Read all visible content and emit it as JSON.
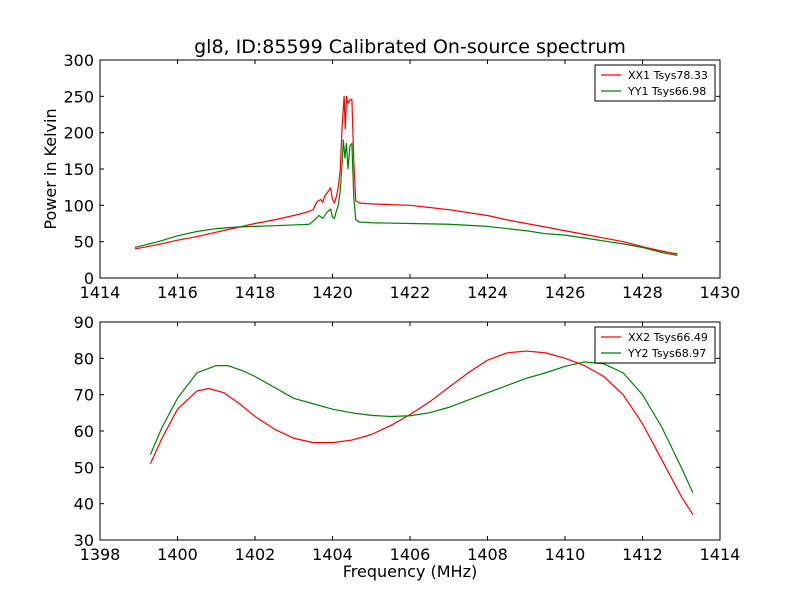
{
  "figure": {
    "title": "gl8, ID:85599 Calibrated On-source spectrum"
  },
  "chart_data": [
    {
      "type": "line",
      "title": "gl8, ID:85599 Calibrated On-source spectrum",
      "xlabel": "",
      "ylabel": "Power in Kelvin",
      "xlim": [
        1414,
        1430
      ],
      "ylim": [
        0,
        300
      ],
      "xticks": [
        1414,
        1416,
        1418,
        1420,
        1422,
        1424,
        1426,
        1428,
        1430
      ],
      "yticks": [
        0,
        50,
        100,
        150,
        200,
        250,
        300
      ],
      "grid": false,
      "legend": "top-right",
      "series": [
        {
          "name": "XX1 Tsys78.33",
          "color": "#ff0000",
          "points": [
            [
              1414.9,
              40
            ],
            [
              1415.5,
              46
            ],
            [
              1416,
              52
            ],
            [
              1416.5,
              57
            ],
            [
              1417,
              63
            ],
            [
              1417.5,
              69
            ],
            [
              1418,
              75
            ],
            [
              1418.5,
              80
            ],
            [
              1419,
              86
            ],
            [
              1419.3,
              90
            ],
            [
              1419.5,
              94
            ],
            [
              1419.6,
              105
            ],
            [
              1419.7,
              108
            ],
            [
              1419.75,
              104
            ],
            [
              1419.8,
              113
            ],
            [
              1419.9,
              120
            ],
            [
              1419.95,
              124
            ],
            [
              1420.0,
              108
            ],
            [
              1420.05,
              103
            ],
            [
              1420.1,
              112
            ],
            [
              1420.15,
              125
            ],
            [
              1420.2,
              150
            ],
            [
              1420.25,
              210
            ],
            [
              1420.3,
              250
            ],
            [
              1420.33,
              205
            ],
            [
              1420.36,
              250
            ],
            [
              1420.4,
              240
            ],
            [
              1420.45,
              245
            ],
            [
              1420.5,
              246
            ],
            [
              1420.55,
              160
            ],
            [
              1420.6,
              106
            ],
            [
              1420.7,
              103
            ],
            [
              1421,
              102
            ],
            [
              1421.5,
              101
            ],
            [
              1422,
              100
            ],
            [
              1422.5,
              97
            ],
            [
              1423,
              94
            ],
            [
              1423.5,
              90
            ],
            [
              1424,
              86
            ],
            [
              1424.5,
              80
            ],
            [
              1425,
              75
            ],
            [
              1425.5,
              70
            ],
            [
              1426,
              65
            ],
            [
              1426.5,
              60
            ],
            [
              1427,
              55
            ],
            [
              1427.5,
              50
            ],
            [
              1428,
              43
            ],
            [
              1428.5,
              37
            ],
            [
              1428.9,
              33
            ]
          ]
        },
        {
          "name": "YY1 Tsys66.98",
          "color": "#008000",
          "points": [
            [
              1414.9,
              42
            ],
            [
              1415.5,
              50
            ],
            [
              1416,
              58
            ],
            [
              1416.5,
              64
            ],
            [
              1417,
              68
            ],
            [
              1417.5,
              70
            ],
            [
              1418,
              71
            ],
            [
              1418.5,
              72
            ],
            [
              1419,
              73
            ],
            [
              1419.4,
              74
            ],
            [
              1419.5,
              78
            ],
            [
              1419.65,
              86
            ],
            [
              1419.75,
              82
            ],
            [
              1419.85,
              90
            ],
            [
              1419.95,
              95
            ],
            [
              1420.0,
              84
            ],
            [
              1420.05,
              82
            ],
            [
              1420.1,
              92
            ],
            [
              1420.15,
              100
            ],
            [
              1420.2,
              120
            ],
            [
              1420.25,
              160
            ],
            [
              1420.28,
              190
            ],
            [
              1420.32,
              165
            ],
            [
              1420.36,
              185
            ],
            [
              1420.4,
              150
            ],
            [
              1420.45,
              182
            ],
            [
              1420.5,
              185
            ],
            [
              1420.55,
              110
            ],
            [
              1420.6,
              80
            ],
            [
              1420.7,
              77
            ],
            [
              1421,
              76
            ],
            [
              1422,
              75
            ],
            [
              1423,
              74
            ],
            [
              1424,
              71
            ],
            [
              1424.5,
              68
            ],
            [
              1425,
              65
            ],
            [
              1425.5,
              61
            ],
            [
              1426,
              59
            ],
            [
              1426.5,
              55
            ],
            [
              1427,
              51
            ],
            [
              1427.5,
              47
            ],
            [
              1428,
              42
            ],
            [
              1428.5,
              35
            ],
            [
              1428.9,
              31
            ]
          ]
        }
      ]
    },
    {
      "type": "line",
      "title": "",
      "xlabel": "Frequency (MHz)",
      "ylabel": "",
      "xlim": [
        1398,
        1414
      ],
      "ylim": [
        30,
        90
      ],
      "xticks": [
        1398,
        1400,
        1402,
        1404,
        1406,
        1408,
        1410,
        1412,
        1414
      ],
      "yticks": [
        30,
        40,
        50,
        60,
        70,
        80,
        90
      ],
      "grid": false,
      "legend": "top-right",
      "series": [
        {
          "name": "XX2 Tsys66.49",
          "color": "#ff0000",
          "points": [
            [
              1399.3,
              51
            ],
            [
              1399.6,
              58
            ],
            [
              1400,
              66
            ],
            [
              1400.5,
              71
            ],
            [
              1400.8,
              71.7
            ],
            [
              1401.2,
              70.5
            ],
            [
              1401.6,
              67.5
            ],
            [
              1402,
              64
            ],
            [
              1402.5,
              60.5
            ],
            [
              1403,
              58
            ],
            [
              1403.5,
              56.8
            ],
            [
              1404,
              56.8
            ],
            [
              1404.5,
              57.5
            ],
            [
              1405,
              59
            ],
            [
              1405.5,
              61.5
            ],
            [
              1406,
              64.5
            ],
            [
              1406.5,
              68
            ],
            [
              1407,
              72
            ],
            [
              1407.5,
              76
            ],
            [
              1408,
              79.5
            ],
            [
              1408.5,
              81.5
            ],
            [
              1409,
              82
            ],
            [
              1409.5,
              81.5
            ],
            [
              1410,
              80
            ],
            [
              1410.5,
              78
            ],
            [
              1411,
              75
            ],
            [
              1411.5,
              70
            ],
            [
              1412,
              62
            ],
            [
              1412.5,
              52
            ],
            [
              1413,
              42
            ],
            [
              1413.3,
              37
            ]
          ]
        },
        {
          "name": "YY2 Tsys68.97",
          "color": "#008000",
          "points": [
            [
              1399.3,
              53.5
            ],
            [
              1399.6,
              61
            ],
            [
              1400,
              69
            ],
            [
              1400.5,
              76
            ],
            [
              1401,
              78
            ],
            [
              1401.3,
              78
            ],
            [
              1401.7,
              76.5
            ],
            [
              1402,
              75
            ],
            [
              1402.5,
              72
            ],
            [
              1403,
              69
            ],
            [
              1403.5,
              67.5
            ],
            [
              1404,
              66
            ],
            [
              1404.5,
              65
            ],
            [
              1405,
              64.3
            ],
            [
              1405.5,
              64
            ],
            [
              1406,
              64.2
            ],
            [
              1406.5,
              65
            ],
            [
              1407,
              66.5
            ],
            [
              1407.5,
              68.5
            ],
            [
              1408,
              70.5
            ],
            [
              1408.5,
              72.5
            ],
            [
              1409,
              74.5
            ],
            [
              1409.5,
              76
            ],
            [
              1410,
              77.8
            ],
            [
              1410.5,
              79
            ],
            [
              1411,
              78.5
            ],
            [
              1411.5,
              76
            ],
            [
              1412,
              70
            ],
            [
              1412.5,
              61
            ],
            [
              1413,
              50
            ],
            [
              1413.3,
              43
            ]
          ]
        }
      ]
    }
  ]
}
